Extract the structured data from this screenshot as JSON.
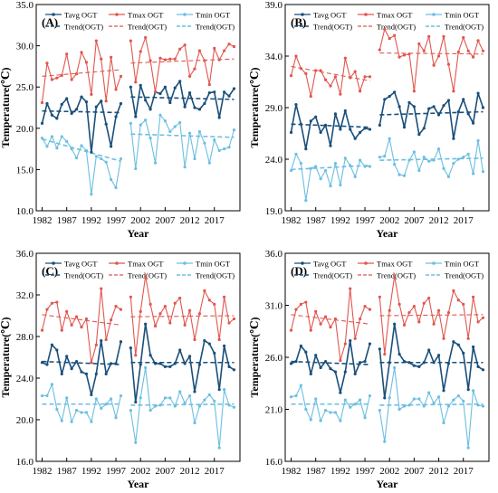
{
  "colors": {
    "tavg": "#1a4f7a",
    "tmax": "#e0574f",
    "tmin": "#6cbfe0"
  },
  "legend": {
    "tavg": "Tavg OGT",
    "tmax": "Tmax OGT",
    "tmin": "Tmin OGT",
    "trend": "Trend(OGT)"
  },
  "chart_data": [
    {
      "type": "line",
      "panel_label": "(A)",
      "ylabel": "Temperature(℃)",
      "xlabel": "Year",
      "ylim": [
        10.0,
        35.0
      ],
      "yticks": [
        "10.0",
        "15.0",
        "20.0",
        "25.0",
        "30.0",
        "35.0"
      ],
      "xticks": [
        1982,
        1987,
        1992,
        1997,
        2002,
        2007,
        2012,
        2017
      ],
      "grid": false,
      "legend_position": "top",
      "x_segment1": [
        1982,
        1998
      ],
      "x_segment2": [
        2000,
        2021
      ],
      "series": [
        {
          "name": "Tavg OGT",
          "key": "tavg",
          "seg1": [
            20.6,
            23.0,
            21.6,
            21.2,
            22.9,
            23.6,
            21.8,
            22.3,
            23.8,
            23.2,
            17.1,
            22.6,
            23.3,
            20.5,
            17.8,
            21.4,
            23.0
          ],
          "seg2": [
            25.0,
            21.4,
            25.2,
            23.4,
            22.3,
            24.4,
            24.2,
            25.0,
            23.1,
            24.9,
            25.7,
            22.6,
            24.3,
            22.5,
            22.3,
            23.0,
            24.3,
            24.4,
            21.3,
            24.4,
            23.9,
            24.8
          ]
        },
        {
          "name": "Tmax OGT",
          "key": "tmax",
          "seg1": [
            23.1,
            27.9,
            25.9,
            26.1,
            26.4,
            29.0,
            25.9,
            26.6,
            29.2,
            28.0,
            24.1,
            30.6,
            28.4,
            23.3,
            28.6,
            24.7,
            26.3
          ],
          "seg2": [
            30.6,
            25.6,
            29.3,
            31.0,
            28.2,
            24.4,
            28.5,
            28.3,
            28.4,
            28.4,
            29.6,
            30.1,
            26.3,
            27.2,
            29.4,
            28.2,
            25.3,
            29.7,
            28.3,
            29.4,
            30.2,
            29.9
          ]
        },
        {
          "name": "Tmin OGT",
          "key": "tmin",
          "seg1": [
            18.8,
            17.8,
            19.0,
            17.6,
            19.0,
            18.4,
            17.5,
            16.4,
            17.9,
            17.3,
            12.0,
            16.6,
            16.3,
            15.9,
            13.8,
            12.8,
            16.3
          ],
          "seg2": [
            20.6,
            15.1,
            20.4,
            21.0,
            18.8,
            15.8,
            21.6,
            20.9,
            19.6,
            20.2,
            20.7,
            15.3,
            19.4,
            16.3,
            19.6,
            18.2,
            15.8,
            18.6,
            17.3,
            17.5,
            17.7,
            19.8
          ]
        }
      ],
      "trends": [
        {
          "key": "tavg",
          "seg1": [
            22.1,
            21.9
          ],
          "seg2": [
            23.8,
            23.5
          ]
        },
        {
          "key": "tmax",
          "seg1": [
            26.3,
            27.1
          ],
          "seg2": [
            27.9,
            28.4
          ]
        },
        {
          "key": "tmin",
          "seg1": [
            18.7,
            16.0
          ],
          "seg2": [
            19.3,
            18.9
          ]
        }
      ]
    },
    {
      "type": "line",
      "panel_label": "(B)",
      "ylabel": "Temperature(℃)",
      "xlabel": "Year",
      "ylim": [
        19.0,
        39.0
      ],
      "yticks": [
        "19.0",
        "24.0",
        "29.0",
        "34.0",
        "39.0"
      ],
      "xticks": [
        1982,
        1987,
        1992,
        1997,
        2002,
        2007,
        2012,
        2017
      ],
      "grid": false,
      "legend_position": "top",
      "x_segment1": [
        1982,
        1998
      ],
      "x_segment2": [
        2000,
        2021
      ],
      "series": [
        {
          "name": "Tavg OGT",
          "key": "tavg",
          "seg1": [
            26.6,
            29.3,
            27.4,
            25.0,
            27.7,
            28.1,
            26.6,
            27.3,
            25.3,
            28.4,
            26.9,
            28.7,
            26.9,
            26.0,
            26.6,
            27.0,
            26.9
          ],
          "seg2": [
            27.3,
            29.8,
            30.1,
            30.5,
            29.1,
            27.1,
            29.5,
            29.1,
            26.4,
            27.0,
            28.9,
            29.1,
            28.3,
            29.2,
            29.7,
            26.0,
            28.6,
            29.8,
            28.4,
            27.5,
            30.4,
            29.0
          ]
        },
        {
          "name": "Tmax OGT",
          "key": "tmax",
          "seg1": [
            32.1,
            34.0,
            32.8,
            32.3,
            30.1,
            32.6,
            32.6,
            31.7,
            31.1,
            32.0,
            30.3,
            33.8,
            31.9,
            32.5,
            30.6,
            32.0,
            32.0
          ],
          "seg2": [
            34.6,
            36.6,
            35.7,
            36.0,
            33.9,
            34.1,
            34.2,
            30.6,
            35.2,
            34.5,
            35.9,
            33.1,
            34.0,
            35.9,
            33.2,
            30.6,
            34.4,
            35.8,
            34.5,
            33.9,
            35.5,
            34.5
          ]
        },
        {
          "name": "Tmin OGT",
          "key": "tmin",
          "seg1": [
            22.9,
            24.5,
            23.6,
            20.0,
            23.1,
            23.3,
            22.1,
            22.9,
            21.4,
            23.6,
            21.5,
            24.1,
            23.4,
            22.3,
            23.9,
            23.3,
            23.3
          ],
          "seg2": [
            24.2,
            24.3,
            26.0,
            23.5,
            22.5,
            22.4,
            23.9,
            24.7,
            22.9,
            24.2,
            23.8,
            23.9,
            25.0,
            23.1,
            22.3,
            23.6,
            24.0,
            24.2,
            24.5,
            22.6,
            25.8,
            22.8
          ]
        }
      ],
      "trends": [
        {
          "key": "tavg",
          "seg1": [
            27.4,
            27.1
          ],
          "seg2": [
            28.3,
            28.6
          ]
        },
        {
          "key": "tmax",
          "seg1": [
            33.0,
            31.6
          ],
          "seg2": [
            34.3,
            34.2
          ]
        },
        {
          "key": "tmin",
          "seg1": [
            23.0,
            23.4
          ],
          "seg2": [
            23.9,
            24.1
          ]
        }
      ]
    },
    {
      "type": "line",
      "panel_label": "(C)",
      "ylabel": "Temperature(℃)",
      "xlabel": "Year",
      "ylim": [
        16.0,
        36.0
      ],
      "yticks": [
        "16.0",
        "20.0",
        "24.0",
        "28.0",
        "32.0",
        "36.0"
      ],
      "xticks": [
        1982,
        1987,
        1992,
        1997,
        2002,
        2007,
        2012,
        2017
      ],
      "grid": false,
      "legend_position": "top",
      "x_segment1": [
        1982,
        1998
      ],
      "x_segment2": [
        2000,
        2021
      ],
      "series": [
        {
          "name": "Tavg OGT",
          "key": "tavg",
          "seg1": [
            25.5,
            25.3,
            27.2,
            26.7,
            24.4,
            26.1,
            24.9,
            25.6,
            24.6,
            24.4,
            22.4,
            24.4,
            27.6,
            24.4,
            25.4,
            25.4,
            27.5
          ],
          "seg2": [
            26.9,
            21.7,
            25.3,
            29.2,
            26.2,
            25.4,
            25.4,
            25.1,
            25.1,
            25.4,
            26.7,
            25.4,
            26.1,
            22.7,
            25.3,
            27.6,
            27.3,
            26.4,
            22.9,
            27.1,
            25.1,
            24.8
          ]
        },
        {
          "name": "Tmax OGT",
          "key": "tmax",
          "seg1": [
            28.6,
            30.6,
            31.2,
            31.3,
            28.6,
            30.4,
            29.1,
            29.9,
            28.9,
            29.7,
            25.5,
            27.2,
            32.6,
            27.7,
            29.6,
            30.9,
            30.6
          ],
          "seg2": [
            31.8,
            26.2,
            30.4,
            33.8,
            31.1,
            29.0,
            30.2,
            30.9,
            29.3,
            31.2,
            31.7,
            29.1,
            30.5,
            27.7,
            30.2,
            32.4,
            31.5,
            31.1,
            27.7,
            31.8,
            29.3,
            29.7
          ]
        },
        {
          "name": "Tmin OGT",
          "key": "tmin",
          "seg1": [
            22.3,
            22.3,
            23.4,
            21.0,
            19.9,
            22.1,
            19.8,
            20.9,
            20.7,
            20.7,
            19.8,
            22.0,
            21.1,
            21.5,
            22.0,
            20.2,
            22.3
          ],
          "seg2": [
            20.9,
            17.8,
            22.1,
            25.0,
            20.9,
            21.3,
            21.4,
            22.1,
            22.1,
            21.3,
            22.7,
            21.6,
            22.3,
            19.7,
            21.3,
            21.9,
            22.4,
            21.8,
            17.3,
            22.9,
            21.4,
            21.2
          ]
        }
      ],
      "trends": [
        {
          "key": "tavg",
          "seg1": [
            25.6,
            25.3
          ],
          "seg2": [
            25.5,
            25.5
          ]
        },
        {
          "key": "tmax",
          "seg1": [
            30.1,
            29.1
          ],
          "seg2": [
            29.9,
            30.0
          ]
        },
        {
          "key": "tmin",
          "seg1": [
            21.5,
            21.5
          ],
          "seg2": [
            21.4,
            21.5
          ]
        }
      ]
    },
    {
      "type": "line",
      "panel_label": "(D)",
      "ylabel": "Temperature(℃)",
      "xlabel": "Year",
      "ylim": [
        16.0,
        36.0
      ],
      "yticks": [
        "16.0",
        "21.0",
        "26.0",
        "31.0",
        "36.0"
      ],
      "xticks": [
        1982,
        1987,
        1992,
        1997,
        2002,
        2007,
        2012,
        2017
      ],
      "grid": false,
      "legend_position": "top",
      "x_segment1": [
        1982,
        1998
      ],
      "x_segment2": [
        2000,
        2021
      ],
      "series": [
        {
          "name": "Tavg OGT",
          "key": "tavg",
          "seg1": [
            25.4,
            25.6,
            27.1,
            26.5,
            24.4,
            26.2,
            25.0,
            25.6,
            24.9,
            24.6,
            22.6,
            24.6,
            27.6,
            24.4,
            25.5,
            25.6,
            27.3
          ],
          "seg2": [
            26.8,
            22.1,
            25.5,
            29.2,
            26.3,
            25.6,
            25.5,
            25.2,
            25.1,
            25.5,
            26.7,
            25.5,
            26.2,
            22.8,
            25.4,
            27.5,
            27.2,
            26.4,
            22.9,
            27.0,
            25.1,
            24.8
          ]
        },
        {
          "name": "Tmax OGT",
          "key": "tmax",
          "seg1": [
            28.6,
            30.6,
            31.1,
            31.3,
            28.6,
            30.4,
            29.2,
            29.9,
            28.9,
            29.7,
            25.7,
            27.3,
            32.6,
            27.8,
            29.7,
            30.9,
            30.6
          ],
          "seg2": [
            31.8,
            26.3,
            30.5,
            33.8,
            31.1,
            29.1,
            30.3,
            30.9,
            29.4,
            31.2,
            31.7,
            29.2,
            30.5,
            27.8,
            30.3,
            32.4,
            31.5,
            31.1,
            27.8,
            31.8,
            29.4,
            29.8
          ]
        },
        {
          "name": "Tmin OGT",
          "key": "tmin",
          "seg1": [
            22.2,
            22.3,
            23.3,
            21.0,
            20.0,
            22.0,
            19.9,
            20.9,
            20.7,
            20.7,
            19.9,
            21.9,
            21.2,
            21.5,
            21.9,
            20.2,
            22.3
          ],
          "seg2": [
            20.9,
            17.9,
            22.1,
            25.0,
            21.0,
            21.3,
            21.4,
            22.0,
            22.0,
            21.3,
            22.6,
            21.6,
            22.2,
            19.7,
            21.3,
            21.9,
            22.3,
            21.8,
            17.3,
            22.8,
            21.4,
            21.3
          ]
        }
      ],
      "trends": [
        {
          "key": "tavg",
          "seg1": [
            25.6,
            25.3
          ],
          "seg2": [
            25.5,
            25.5
          ]
        },
        {
          "key": "tmax",
          "seg1": [
            30.1,
            29.2
          ],
          "seg2": [
            30.0,
            30.1
          ]
        },
        {
          "key": "tmin",
          "seg1": [
            21.5,
            21.5
          ],
          "seg2": [
            21.4,
            21.5
          ]
        }
      ]
    }
  ]
}
